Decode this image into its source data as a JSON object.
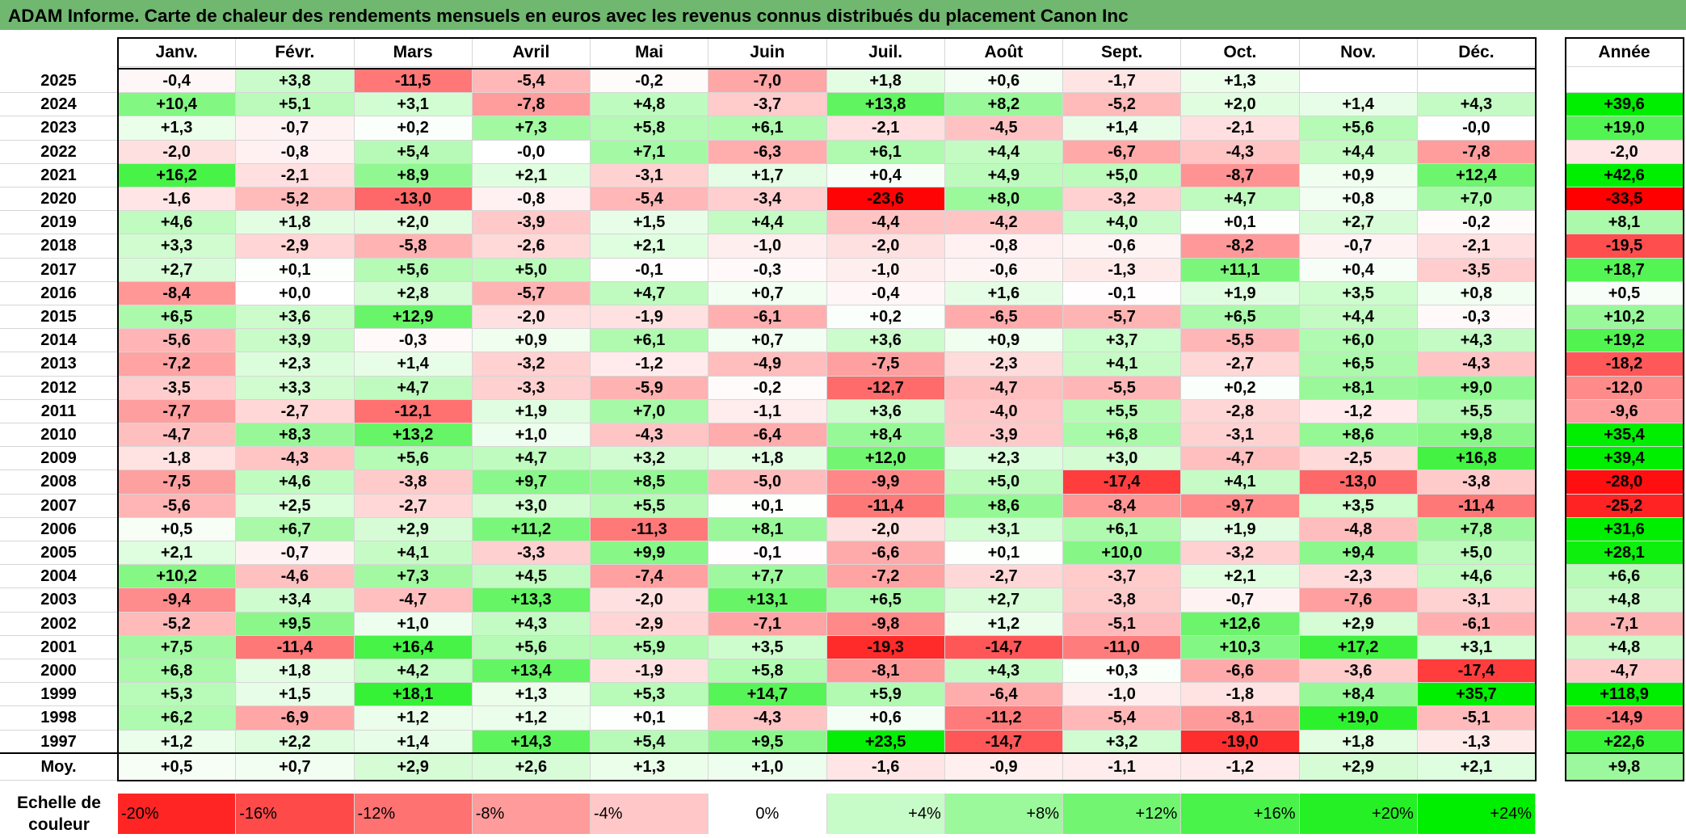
{
  "title": "ADAM Informe. Carte de chaleur des rendements mensuels en euros avec les revenus connus distribués du placement Canon Inc",
  "chart_data": {
    "type": "heatmap",
    "months": [
      "Janv.",
      "Févr.",
      "Mars",
      "Avril",
      "Mai",
      "Juin",
      "Juil.",
      "Août",
      "Sept.",
      "Oct.",
      "Nov.",
      "Déc."
    ],
    "annual_label": "Année",
    "average_label": "Moy.",
    "rows": [
      {
        "year": "2025",
        "values": [
          "-0,4",
          "+3,8",
          "-11,5",
          "-5,4",
          "-0,2",
          "-7,0",
          "+1,8",
          "+0,6",
          "-1,7",
          "+1,3",
          "",
          ""
        ],
        "annual": ""
      },
      {
        "year": "2024",
        "values": [
          "+10,4",
          "+5,1",
          "+3,1",
          "-7,8",
          "+4,8",
          "-3,7",
          "+13,8",
          "+8,2",
          "-5,2",
          "+2,0",
          "+1,4",
          "+4,3"
        ],
        "annual": "+39,6"
      },
      {
        "year": "2023",
        "values": [
          "+1,3",
          "-0,7",
          "+0,2",
          "+7,3",
          "+5,8",
          "+6,1",
          "-2,1",
          "-4,5",
          "+1,4",
          "-2,1",
          "+5,6",
          "-0,0"
        ],
        "annual": "+19,0"
      },
      {
        "year": "2022",
        "values": [
          "-2,0",
          "-0,8",
          "+5,4",
          "-0,0",
          "+7,1",
          "-6,3",
          "+6,1",
          "+4,4",
          "-6,7",
          "-4,3",
          "+4,4",
          "-7,8"
        ],
        "annual": "-2,0"
      },
      {
        "year": "2021",
        "values": [
          "+16,2",
          "-2,1",
          "+8,9",
          "+2,1",
          "-3,1",
          "+1,7",
          "+0,4",
          "+4,9",
          "+5,0",
          "-8,7",
          "+0,9",
          "+12,4"
        ],
        "annual": "+42,6"
      },
      {
        "year": "2020",
        "values": [
          "-1,6",
          "-5,2",
          "-13,0",
          "-0,8",
          "-5,4",
          "-3,4",
          "-23,6",
          "+8,0",
          "-3,2",
          "+4,7",
          "+0,8",
          "+7,0"
        ],
        "annual": "-33,5"
      },
      {
        "year": "2019",
        "values": [
          "+4,6",
          "+1,8",
          "+2,0",
          "-3,9",
          "+1,5",
          "+4,4",
          "-4,4",
          "-4,2",
          "+4,0",
          "+0,1",
          "+2,7",
          "-0,2"
        ],
        "annual": "+8,1"
      },
      {
        "year": "2018",
        "values": [
          "+3,3",
          "-2,9",
          "-5,8",
          "-2,6",
          "+2,1",
          "-1,0",
          "-2,0",
          "-0,8",
          "-0,6",
          "-8,2",
          "-0,7",
          "-2,1"
        ],
        "annual": "-19,5"
      },
      {
        "year": "2017",
        "values": [
          "+2,7",
          "+0,1",
          "+5,6",
          "+5,0",
          "-0,1",
          "-0,3",
          "-1,0",
          "-0,6",
          "-1,3",
          "+11,1",
          "+0,4",
          "-3,5"
        ],
        "annual": "+18,7"
      },
      {
        "year": "2016",
        "values": [
          "-8,4",
          "+0,0",
          "+2,8",
          "-5,7",
          "+4,7",
          "+0,7",
          "-0,4",
          "+1,6",
          "-0,1",
          "+1,9",
          "+3,5",
          "+0,8"
        ],
        "annual": "+0,5"
      },
      {
        "year": "2015",
        "values": [
          "+6,5",
          "+3,6",
          "+12,9",
          "-2,0",
          "-1,9",
          "-6,1",
          "+0,2",
          "-6,5",
          "-5,7",
          "+6,5",
          "+4,4",
          "-0,3"
        ],
        "annual": "+10,2"
      },
      {
        "year": "2014",
        "values": [
          "-5,6",
          "+3,9",
          "-0,3",
          "+0,9",
          "+6,1",
          "+0,7",
          "+3,6",
          "+0,9",
          "+3,7",
          "-5,5",
          "+6,0",
          "+4,3"
        ],
        "annual": "+19,2"
      },
      {
        "year": "2013",
        "values": [
          "-7,2",
          "+2,3",
          "+1,4",
          "-3,2",
          "-1,2",
          "-4,9",
          "-7,5",
          "-2,3",
          "+4,1",
          "-2,7",
          "+6,5",
          "-4,3"
        ],
        "annual": "-18,2"
      },
      {
        "year": "2012",
        "values": [
          "-3,5",
          "+3,3",
          "+4,7",
          "-3,3",
          "-5,9",
          "-0,2",
          "-12,7",
          "-4,7",
          "-5,5",
          "+0,2",
          "+8,1",
          "+9,0"
        ],
        "annual": "-12,0"
      },
      {
        "year": "2011",
        "values": [
          "-7,7",
          "-2,7",
          "-12,1",
          "+1,9",
          "+7,0",
          "-1,1",
          "+3,6",
          "-4,0",
          "+5,5",
          "-2,8",
          "-1,2",
          "+5,5"
        ],
        "annual": "-9,6"
      },
      {
        "year": "2010",
        "values": [
          "-4,7",
          "+8,3",
          "+13,2",
          "+1,0",
          "-4,3",
          "-6,4",
          "+8,4",
          "-3,9",
          "+6,8",
          "-3,1",
          "+8,6",
          "+9,8"
        ],
        "annual": "+35,4"
      },
      {
        "year": "2009",
        "values": [
          "-1,8",
          "-4,3",
          "+5,6",
          "+4,7",
          "+3,2",
          "+1,8",
          "+12,0",
          "+2,3",
          "+3,0",
          "-4,7",
          "-2,5",
          "+16,8"
        ],
        "annual": "+39,4"
      },
      {
        "year": "2008",
        "values": [
          "-7,5",
          "+4,6",
          "-3,8",
          "+9,7",
          "+8,5",
          "-5,0",
          "-9,9",
          "+5,0",
          "-17,4",
          "+4,1",
          "-13,0",
          "-3,8"
        ],
        "annual": "-28,0"
      },
      {
        "year": "2007",
        "values": [
          "-5,6",
          "+2,5",
          "-2,7",
          "+3,0",
          "+5,5",
          "+0,1",
          "-11,4",
          "+8,6",
          "-8,4",
          "-9,7",
          "+3,5",
          "-11,4"
        ],
        "annual": "-25,2"
      },
      {
        "year": "2006",
        "values": [
          "+0,5",
          "+6,7",
          "+2,9",
          "+11,2",
          "-11,3",
          "+8,1",
          "-2,0",
          "+3,1",
          "+6,1",
          "+1,9",
          "-4,8",
          "+7,8"
        ],
        "annual": "+31,6"
      },
      {
        "year": "2005",
        "values": [
          "+2,1",
          "-0,7",
          "+4,1",
          "-3,3",
          "+9,9",
          "-0,1",
          "-6,6",
          "+0,1",
          "+10,0",
          "-3,2",
          "+9,4",
          "+5,0"
        ],
        "annual": "+28,1"
      },
      {
        "year": "2004",
        "values": [
          "+10,2",
          "-4,6",
          "+7,3",
          "+4,5",
          "-7,4",
          "+7,7",
          "-7,2",
          "-2,7",
          "-3,7",
          "+2,1",
          "-2,3",
          "+4,6"
        ],
        "annual": "+6,6"
      },
      {
        "year": "2003",
        "values": [
          "-9,4",
          "+3,4",
          "-4,7",
          "+13,3",
          "-2,0",
          "+13,1",
          "+6,5",
          "+2,7",
          "-3,8",
          "-0,7",
          "-7,6",
          "-3,1"
        ],
        "annual": "+4,8"
      },
      {
        "year": "2002",
        "values": [
          "-5,2",
          "+9,5",
          "+1,0",
          "+4,3",
          "-2,9",
          "-7,1",
          "-9,8",
          "+1,2",
          "-5,1",
          "+12,6",
          "+2,9",
          "-6,1"
        ],
        "annual": "-7,1"
      },
      {
        "year": "2001",
        "values": [
          "+7,5",
          "-11,4",
          "+16,4",
          "+5,6",
          "+5,9",
          "+3,5",
          "-19,3",
          "-14,7",
          "-11,0",
          "+10,3",
          "+17,2",
          "+3,1"
        ],
        "annual": "+4,8"
      },
      {
        "year": "2000",
        "values": [
          "+6,8",
          "+1,8",
          "+4,2",
          "+13,4",
          "-1,9",
          "+5,8",
          "-8,1",
          "+4,3",
          "+0,3",
          "-6,6",
          "-3,6",
          "-17,4"
        ],
        "annual": "-4,7"
      },
      {
        "year": "1999",
        "values": [
          "+5,3",
          "+1,5",
          "+18,1",
          "+1,3",
          "+5,3",
          "+14,7",
          "+5,9",
          "-6,4",
          "-1,0",
          "-1,8",
          "+8,4",
          "+35,7"
        ],
        "annual": "+118,9"
      },
      {
        "year": "1998",
        "values": [
          "+6,2",
          "-6,9",
          "+1,2",
          "+1,2",
          "+0,1",
          "-4,3",
          "+0,6",
          "-11,2",
          "-5,4",
          "-8,1",
          "+19,0",
          "-5,1"
        ],
        "annual": "-14,9"
      },
      {
        "year": "1997",
        "values": [
          "+1,2",
          "+2,2",
          "+1,4",
          "+14,3",
          "+5,4",
          "+9,5",
          "+23,5",
          "-14,7",
          "+3,2",
          "-19,0",
          "+1,8",
          "-1,3"
        ],
        "annual": "+22,6"
      }
    ],
    "average": {
      "values": [
        "+0,5",
        "+0,7",
        "+2,9",
        "+2,6",
        "+1,3",
        "+1,0",
        "-1,6",
        "-0,9",
        "-1,1",
        "-1,2",
        "+2,9",
        "+2,1"
      ],
      "annual": "+9,8"
    },
    "scale": {
      "label_line1": "Echelle de",
      "label_line2": "couleur",
      "stops": [
        "-20%",
        "-16%",
        "-12%",
        "-8%",
        "-4%",
        "0%",
        "+4%",
        "+8%",
        "+12%",
        "+16%",
        "+20%",
        "+24%"
      ],
      "stop_values": [
        -20,
        -16,
        -12,
        -8,
        -4,
        0,
        4,
        8,
        12,
        16,
        20,
        24
      ]
    },
    "colors": {
      "negative_max": "#ff0000",
      "neutral": "#ffffff",
      "positive_max": "#00ee00",
      "title_bar": "#70b870"
    }
  }
}
